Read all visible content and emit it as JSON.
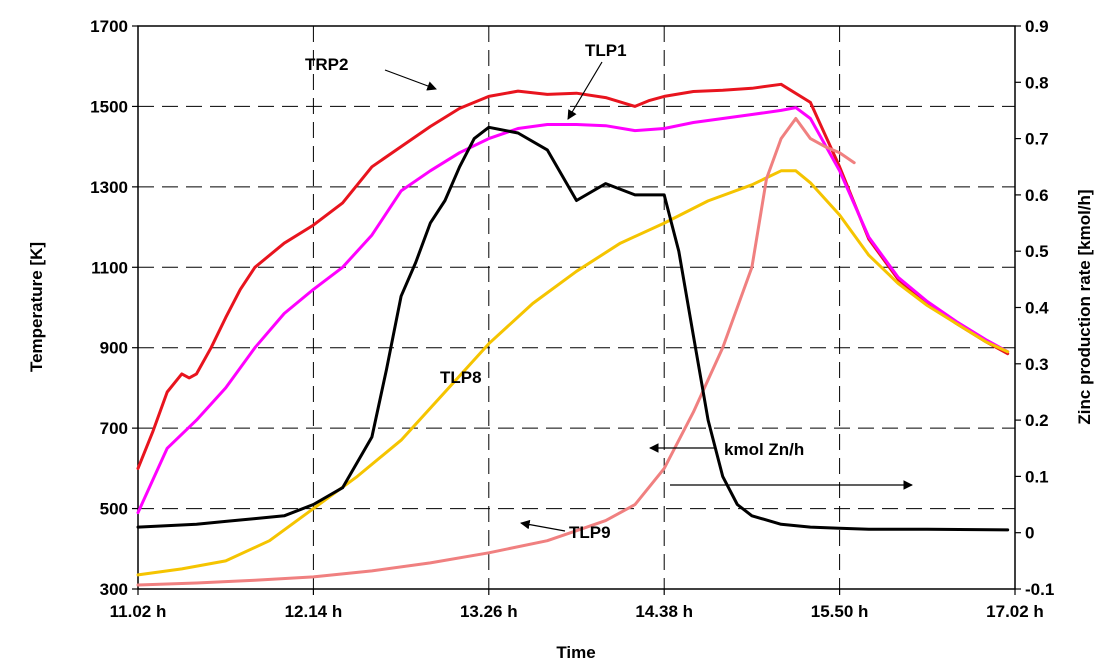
{
  "chart_data": {
    "type": "line",
    "xlabel": "Time",
    "ylabel_left": "Temperature [K]",
    "ylabel_right": "Zinc production rate [kmol/h]",
    "x_ticks": [
      "11.02 h",
      "12.14 h",
      "13.26 h",
      "14.38 h",
      "15.50 h",
      "17.02 h"
    ],
    "y_left_ticks": [
      "300",
      "500",
      "700",
      "900",
      "1100",
      "1300",
      "1500",
      "1700"
    ],
    "y_right_ticks": [
      "-0.1",
      "0",
      "0.1",
      "0.2",
      "0.3",
      "0.4",
      "0.5",
      "0.6",
      "0.7",
      "0.8",
      "0.9"
    ],
    "x_unit": "hours since 11.02 h (tick spacing 1.2 h)",
    "xlim": [
      0,
      6.0
    ],
    "ylim_left": [
      300,
      1700
    ],
    "ylim_right": [
      -0.1,
      0.9
    ],
    "grid": "dashed, both axes",
    "series": [
      {
        "name": "TRP2",
        "axis": "left",
        "color": "#E8141E",
        "x": [
          0.0,
          0.1,
          0.2,
          0.3,
          0.35,
          0.4,
          0.5,
          0.6,
          0.7,
          0.8,
          1.0,
          1.2,
          1.4,
          1.6,
          1.8,
          2.0,
          2.2,
          2.4,
          2.6,
          2.8,
          3.0,
          3.2,
          3.4,
          3.5,
          3.6,
          3.8,
          4.0,
          4.2,
          4.4,
          4.6,
          4.8,
          5.0,
          5.2,
          5.4,
          5.6,
          5.8,
          5.95
        ],
        "y": [
          600,
          690,
          790,
          835,
          825,
          835,
          900,
          975,
          1045,
          1100,
          1160,
          1205,
          1260,
          1350,
          1400,
          1450,
          1495,
          1525,
          1538,
          1530,
          1533,
          1522,
          1500,
          1515,
          1525,
          1537,
          1540,
          1545,
          1555,
          1510,
          1350,
          1170,
          1070,
          1010,
          960,
          915,
          885
        ]
      },
      {
        "name": "TLP1",
        "axis": "left",
        "color": "#FF00FF",
        "x": [
          0.0,
          0.1,
          0.2,
          0.4,
          0.6,
          0.8,
          1.0,
          1.2,
          1.4,
          1.6,
          1.8,
          2.0,
          2.2,
          2.4,
          2.6,
          2.8,
          3.0,
          3.2,
          3.4,
          3.6,
          3.8,
          4.0,
          4.2,
          4.4,
          4.5,
          4.6,
          4.8,
          5.0,
          5.2,
          5.4,
          5.6,
          5.8,
          5.95
        ],
        "y": [
          490,
          570,
          650,
          720,
          800,
          900,
          985,
          1045,
          1100,
          1180,
          1290,
          1340,
          1385,
          1420,
          1445,
          1455,
          1455,
          1452,
          1440,
          1445,
          1460,
          1470,
          1480,
          1490,
          1497,
          1470,
          1340,
          1175,
          1075,
          1015,
          965,
          920,
          890
        ]
      },
      {
        "name": "TLP8",
        "axis": "left",
        "color": "#F5C400",
        "x": [
          0.0,
          0.3,
          0.6,
          0.9,
          1.2,
          1.5,
          1.8,
          2.1,
          2.4,
          2.7,
          3.0,
          3.3,
          3.6,
          3.9,
          4.2,
          4.4,
          4.5,
          4.6,
          4.8,
          5.0,
          5.2,
          5.4,
          5.6,
          5.8,
          5.95
        ],
        "y": [
          335,
          350,
          370,
          420,
          500,
          580,
          670,
          790,
          910,
          1010,
          1090,
          1160,
          1210,
          1265,
          1305,
          1340,
          1340,
          1310,
          1230,
          1130,
          1060,
          1005,
          960,
          915,
          890
        ]
      },
      {
        "name": "TLP9",
        "axis": "left",
        "color": "#F08080",
        "x": [
          0.0,
          0.4,
          0.8,
          1.2,
          1.6,
          2.0,
          2.4,
          2.8,
          3.0,
          3.2,
          3.4,
          3.6,
          3.8,
          4.0,
          4.2,
          4.3,
          4.4,
          4.5,
          4.6,
          4.7,
          4.8,
          4.9
        ],
        "y": [
          310,
          315,
          322,
          330,
          345,
          365,
          390,
          420,
          445,
          470,
          510,
          600,
          740,
          900,
          1100,
          1320,
          1420,
          1470,
          1420,
          1400,
          1385,
          1360
        ]
      },
      {
        "name": "kmol Zn/h",
        "axis": "right",
        "color": "#000000",
        "x": [
          0.0,
          0.4,
          0.6,
          0.8,
          1.0,
          1.2,
          1.4,
          1.6,
          1.7,
          1.8,
          1.9,
          2.0,
          2.1,
          2.2,
          2.3,
          2.4,
          2.6,
          2.8,
          3.0,
          3.2,
          3.4,
          3.6,
          3.65,
          3.7,
          3.8,
          3.9,
          4.0,
          4.1,
          4.2,
          4.4,
          4.6,
          4.8,
          5.0,
          5.4,
          5.95
        ],
        "y": [
          0.01,
          0.015,
          0.02,
          0.025,
          0.03,
          0.05,
          0.08,
          0.17,
          0.29,
          0.42,
          0.48,
          0.55,
          0.59,
          0.65,
          0.7,
          0.72,
          0.71,
          0.68,
          0.59,
          0.62,
          0.6,
          0.6,
          0.55,
          0.5,
          0.35,
          0.2,
          0.1,
          0.05,
          0.03,
          0.015,
          0.01,
          0.008,
          0.006,
          0.006,
          0.005
        ]
      }
    ],
    "annotations": [
      {
        "text": "TRP2"
      },
      {
        "text": "TLP1"
      },
      {
        "text": "TLP8"
      },
      {
        "text": "kmol Zn/h"
      },
      {
        "text": "TLP9"
      }
    ]
  }
}
